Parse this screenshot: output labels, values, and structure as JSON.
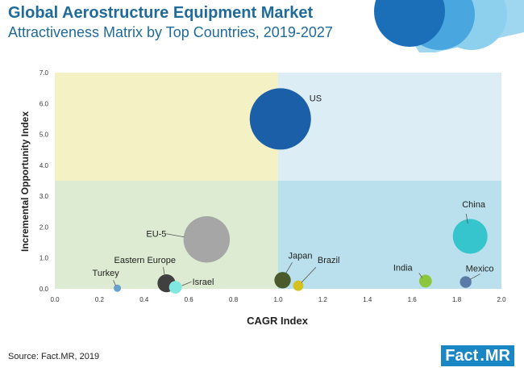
{
  "header": {
    "title": "Global Aerostructure Equipment Market",
    "subtitle": "Attractiveness Matrix by Top Countries, 2019-2027"
  },
  "footer": {
    "source": "Source: Fact.MR, 2019",
    "logo_left": "Fact",
    "logo_dot": ".",
    "logo_right": "MR"
  },
  "colors": {
    "quadrant_top_left": "#f4f1c4",
    "quadrant_top_right": "#dcedf6",
    "quadrant_bottom_left": "#dcebd1",
    "quadrant_bottom_right": "#b9e0ec",
    "title": "#1f6b9a",
    "accent": "#1a86c4"
  },
  "chart_data": {
    "type": "bubble",
    "xlabel": "CAGR Index",
    "ylabel": "Incremental Opportunity Index",
    "xlim": [
      0,
      2
    ],
    "ylim": [
      0,
      7
    ],
    "x_ticks": [
      "0.0",
      "0.2",
      "0.4",
      "0.6",
      "0.8",
      "1.0",
      "1.2",
      "1.4",
      "1.6",
      "1.8",
      "2.0"
    ],
    "y_ticks": [
      "0.0",
      "1.0",
      "2.0",
      "3.0",
      "4.0",
      "5.0",
      "6.0",
      "7.0"
    ],
    "quadrant_split": {
      "x": 1.0,
      "y": 3.5
    },
    "grid": false,
    "points": [
      {
        "label": "US",
        "x": 1.01,
        "y": 5.5,
        "size": 14,
        "color": "#1a5fa8"
      },
      {
        "label": "China",
        "x": 1.86,
        "y": 1.7,
        "size": 4.5,
        "color": "#36c5cc"
      },
      {
        "label": "EU-5",
        "x": 0.68,
        "y": 1.6,
        "size": 8,
        "color": "#a6a6a6"
      },
      {
        "label": "Eastern Europe",
        "x": 0.5,
        "y": 0.18,
        "size": 1.2,
        "color": "#404040"
      },
      {
        "label": "Israel",
        "x": 0.54,
        "y": 0.05,
        "size": 0.6,
        "color": "#7fe8e0"
      },
      {
        "label": "Turkey",
        "x": 0.28,
        "y": 0.02,
        "size": 0.2,
        "color": "#6aa0d0"
      },
      {
        "label": "Japan",
        "x": 1.02,
        "y": 0.28,
        "size": 1.0,
        "color": "#4a5a2a"
      },
      {
        "label": "Brazil",
        "x": 1.09,
        "y": 0.1,
        "size": 0.4,
        "color": "#d4c020"
      },
      {
        "label": "India",
        "x": 1.66,
        "y": 0.25,
        "size": 0.6,
        "color": "#8cc63e"
      },
      {
        "label": "Mexico",
        "x": 1.84,
        "y": 0.22,
        "size": 0.5,
        "color": "#5a7aa8"
      }
    ]
  }
}
